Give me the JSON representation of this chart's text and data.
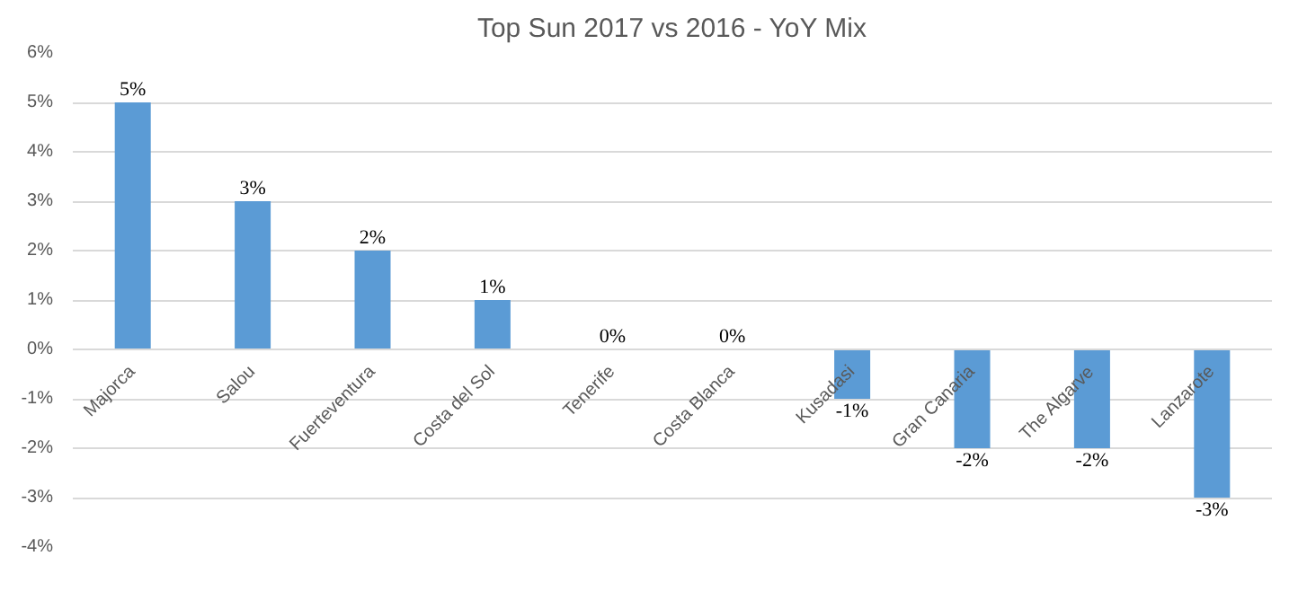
{
  "chart_data": {
    "type": "bar",
    "title": "Top Sun 2017 vs 2016 - YoY Mix",
    "categories": [
      "Majorca",
      "Salou",
      "Fuerteventura",
      "Costa del Sol",
      "Tenerife",
      "Costa Blanca",
      "Kusadasi",
      "Gran Canaria",
      "The Algarve",
      "Lanzarote"
    ],
    "values": [
      5,
      3,
      2,
      1,
      0,
      0,
      -1,
      -2,
      -2,
      -3
    ],
    "value_labels": [
      "5%",
      "3%",
      "2%",
      "1%",
      "0%",
      "0%",
      "-1%",
      "-2%",
      "-2%",
      "-3%"
    ],
    "color": "#5b9bd5",
    "ylim": [
      -4,
      6
    ],
    "yticks": [
      {
        "value": -4,
        "label": "-4%"
      },
      {
        "value": -3,
        "label": "-3%"
      },
      {
        "value": -2,
        "label": "-2%"
      },
      {
        "value": -1,
        "label": "-1%"
      },
      {
        "value": 0,
        "label": "0%"
      },
      {
        "value": 1,
        "label": "1%"
      },
      {
        "value": 2,
        "label": "2%"
      },
      {
        "value": 3,
        "label": "3%"
      },
      {
        "value": 4,
        "label": "4%"
      },
      {
        "value": 5,
        "label": "5%"
      },
      {
        "value": 6,
        "label": "6%"
      }
    ],
    "grid": "y"
  }
}
